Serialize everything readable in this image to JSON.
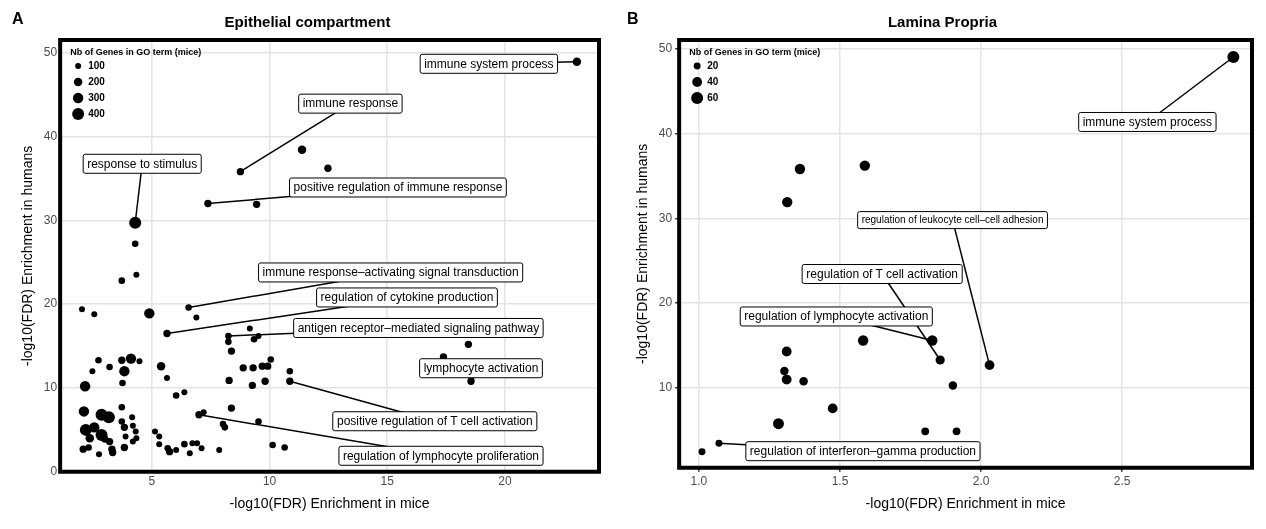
{
  "chart_data": [
    {
      "type": "bubble",
      "title": "Epithelial compartment",
      "xlabel": "-log10(FDR) Enrichment in mice",
      "ylabel": "-log10(FDR) Enrichment in humans",
      "legend_title": "Nb of Genes in GO term (mice)",
      "grid": true,
      "color": "#000000",
      "x": [
        23.06,
        8.76,
        11.38,
        12.48,
        7.38,
        9.45,
        4.29,
        4.29,
        3.72,
        4.34,
        2.03,
        2.55,
        4.89,
        6.56,
        6.89,
        5.64,
        8.25,
        8.25,
        9.16,
        9.34,
        9.53,
        8.38,
        18.45,
        17.39,
        18.56,
        2.73,
        2.47,
        3.2,
        3.72,
        4.11,
        4.47,
        3.83,
        3.75,
        2.16,
        5.39,
        5.64,
        8.88,
        9.3,
        9.69,
        9.92,
        10.05,
        8.28,
        9.27,
        9.81,
        10.86,
        10.86,
        6.03,
        6.38,
        8.38,
        9.53,
        7.0,
        7.2,
        8.02,
        8.1,
        5.13,
        5.31,
        5.31,
        5.67,
        5.75,
        6.03,
        6.38,
        6.61,
        6.72,
        6.92,
        7.11,
        7.86,
        10.13,
        10.64,
        2.11,
        2.86,
        3.17,
        2.19,
        2.55,
        2.86,
        2.36,
        2.08,
        2.31,
        2.75,
        3.2,
        3.33,
        3.72,
        3.72,
        4.16,
        3.83,
        4.19,
        4.31,
        3.88,
        3.83,
        4.19,
        4.34,
        3.3,
        3.0
      ],
      "values": [
        48.9,
        35.8,
        38.4,
        36.2,
        32.0,
        31.9,
        29.7,
        27.2,
        22.8,
        23.5,
        19.4,
        18.8,
        18.9,
        19.6,
        18.4,
        16.5,
        16.2,
        15.5,
        17.1,
        15.8,
        16.2,
        14.4,
        15.2,
        13.7,
        10.8,
        13.3,
        12.0,
        12.5,
        13.3,
        13.5,
        13.2,
        12.0,
        10.6,
        10.2,
        12.6,
        11.2,
        12.4,
        12.4,
        12.6,
        12.6,
        13.4,
        10.9,
        10.3,
        10.8,
        12.0,
        10.8,
        9.1,
        9.5,
        7.6,
        6.0,
        6.8,
        7.1,
        5.7,
        5.3,
        4.8,
        4.2,
        3.3,
        2.8,
        2.4,
        2.6,
        3.3,
        2.2,
        3.4,
        3.4,
        2.8,
        2.6,
        3.2,
        2.9,
        7.2,
        6.8,
        6.5,
        5.0,
        5.3,
        4.4,
        4.0,
        2.7,
        2.9,
        2.1,
        3.6,
        2.3,
        7.7,
        6.0,
        6.5,
        5.3,
        5.5,
        4.8,
        4.2,
        2.9,
        3.6,
        4.0,
        2.7,
        3.9
      ],
      "sizes": [
        200,
        150,
        200,
        150,
        150,
        150,
        400,
        120,
        120,
        100,
        100,
        100,
        300,
        120,
        100,
        150,
        120,
        120,
        100,
        120,
        100,
        150,
        150,
        150,
        150,
        120,
        100,
        120,
        150,
        300,
        100,
        300,
        120,
        300,
        200,
        100,
        150,
        150,
        150,
        150,
        120,
        150,
        150,
        150,
        120,
        150,
        120,
        100,
        150,
        120,
        150,
        100,
        120,
        120,
        100,
        100,
        100,
        120,
        150,
        100,
        120,
        100,
        100,
        100,
        100,
        100,
        120,
        120,
        300,
        400,
        400,
        400,
        300,
        400,
        200,
        150,
        120,
        100,
        150,
        150,
        120,
        120,
        100,
        150,
        100,
        100,
        100,
        150,
        100,
        100,
        150,
        150
      ],
      "size_legend": [
        100,
        200,
        300,
        400
      ],
      "xlim": [
        1.1,
        24
      ],
      "ylim": [
        0,
        51.5
      ],
      "xticks": [
        5,
        10,
        15,
        20
      ],
      "yticks": [
        0,
        10,
        20,
        30,
        40,
        50
      ],
      "annotations": [
        {
          "text": "immune system process",
          "x": 23.06,
          "y": 48.9
        },
        {
          "text": "immune response",
          "x": 8.76,
          "y": 35.8
        },
        {
          "text": "positive regulation of immune response",
          "x": 7.38,
          "y": 32.0
        },
        {
          "text": "response to stimulus",
          "x": 4.29,
          "y": 29.7
        },
        {
          "text": "immune response–activating signal transduction",
          "x": 6.56,
          "y": 19.6
        },
        {
          "text": "regulation of cytokine production",
          "x": 5.64,
          "y": 16.5
        },
        {
          "text": "antigen receptor–mediated signaling pathway",
          "x": 8.25,
          "y": 16.2
        },
        {
          "text": "lymphocyte activation",
          "x": 18.56,
          "y": 10.8
        },
        {
          "text": "positive regulation of T cell activation",
          "x": 10.86,
          "y": 10.8
        },
        {
          "text": "regulation of lymphocyte proliferation",
          "x": 7.0,
          "y": 6.8
        },
        "A"
      ]
    },
    {
      "type": "bubble",
      "title": "Lamina Propria",
      "xlabel": "-log10(FDR) Enrichment in mice",
      "ylabel": "-log10(FDR) Enrichment in humans",
      "legend_title": "Nb of Genes in GO term (mice)",
      "grid": true,
      "color": "#000000",
      "x": [
        2.894,
        1.358,
        1.588,
        1.313,
        2.03,
        1.855,
        1.827,
        1.582,
        1.311,
        1.303,
        1.311,
        1.371,
        1.9,
        1.474,
        1.282,
        1.802,
        1.913,
        1.011,
        1.071
      ],
      "values": [
        49.0,
        35.8,
        36.2,
        31.9,
        12.7,
        13.3,
        15.6,
        15.6,
        14.3,
        12.0,
        11.0,
        10.8,
        10.3,
        7.6,
        5.8,
        4.9,
        4.9,
        2.5,
        3.5
      ],
      "sizes": [
        60,
        45,
        45,
        45,
        40,
        35,
        45,
        45,
        40,
        30,
        40,
        30,
        30,
        40,
        50,
        25,
        25,
        20,
        20
      ],
      "size_legend": [
        20,
        40,
        60
      ],
      "xlim": [
        0.93,
        2.96
      ],
      "ylim": [
        0.6,
        51
      ],
      "xticks": [
        {
          "value": 1,
          "label": "1.0"
        },
        {
          "value": 1.5,
          "label": "1.5"
        },
        {
          "value": 2,
          "label": "2.0"
        },
        {
          "value": 2.5,
          "label": "2.5"
        }
      ],
      "yticks": [
        10,
        20,
        30,
        40,
        50
      ],
      "annotations": [
        {
          "text": "immune system process",
          "x": 2.894,
          "y": 49.0
        },
        {
          "text": "regulation of leukocyte cell–cell adhesion",
          "x": 2.03,
          "y": 12.7
        },
        {
          "text": "regulation of T cell activation",
          "x": 1.855,
          "y": 13.3
        },
        {
          "text": "regulation of lymphocyte activation",
          "x": 1.827,
          "y": 15.6
        },
        {
          "text": "regulation of interferon–gamma production",
          "x": 1.071,
          "y": 3.5
        },
        "B"
      ]
    }
  ]
}
